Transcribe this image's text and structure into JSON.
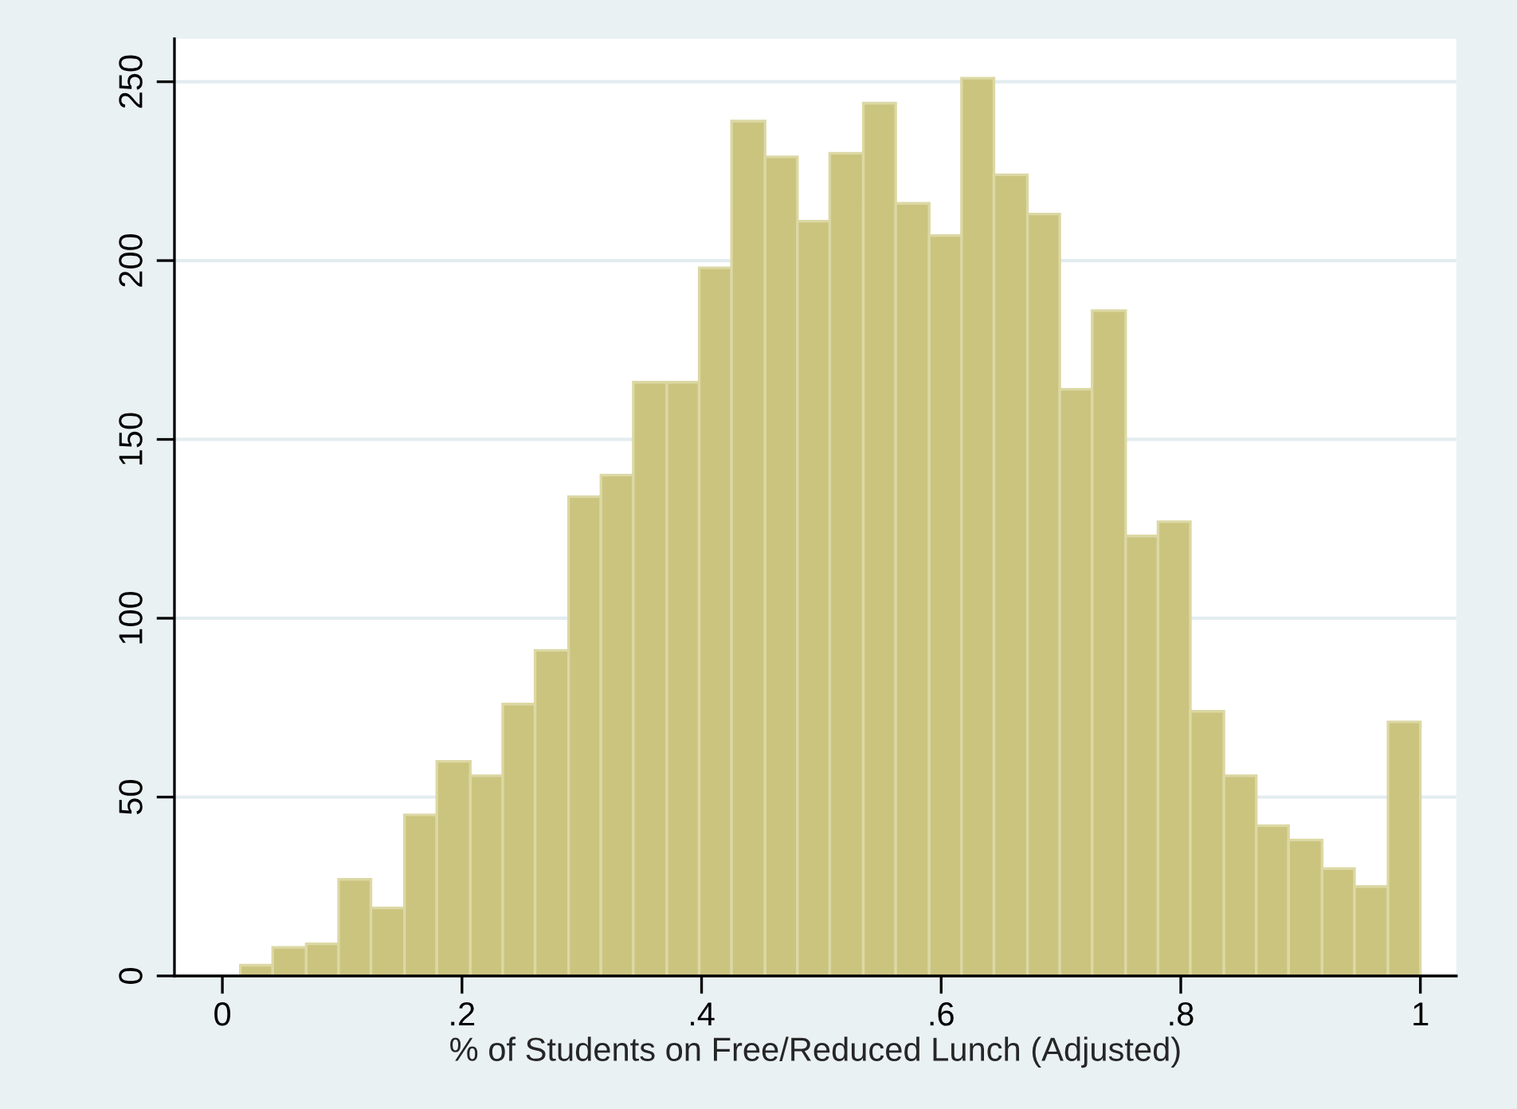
{
  "chart_data": {
    "type": "histogram",
    "xlabel": "% of Students on Free/Reduced Lunch (Adjusted)",
    "bins": [
      0.015,
      0.042,
      0.07,
      0.097,
      0.124,
      0.152,
      0.179,
      0.207,
      0.234,
      0.261,
      0.289,
      0.316,
      0.343,
      0.371,
      0.398,
      0.425,
      0.453,
      0.48,
      0.507,
      0.535,
      0.562,
      0.59,
      0.617,
      0.644,
      0.672,
      0.699,
      0.726,
      0.754,
      0.781,
      0.808,
      0.836,
      0.863,
      0.89,
      0.918,
      0.945,
      0.973,
      1.0
    ],
    "values": [
      3,
      8,
      9,
      27,
      19,
      45,
      60,
      56,
      76,
      91,
      134,
      140,
      166,
      166,
      198,
      239,
      229,
      211,
      230,
      244,
      216,
      207,
      251,
      224,
      213,
      164,
      186,
      123,
      127,
      74,
      56,
      42,
      38,
      30,
      25,
      71
    ],
    "color": "#cbc47f",
    "xlim": [
      -0.04,
      1.03
    ],
    "ylim": [
      0,
      262
    ],
    "xticks": [
      {
        "value": 0,
        "label": "0"
      },
      {
        "value": 0.2,
        "label": ".2"
      },
      {
        "value": 0.4,
        "label": ".4"
      },
      {
        "value": 0.6,
        "label": ".6"
      },
      {
        "value": 0.8,
        "label": ".8"
      },
      {
        "value": 1,
        "label": "1"
      }
    ],
    "yticks": [
      0,
      50,
      100,
      150,
      200,
      250
    ],
    "grid": "y"
  }
}
